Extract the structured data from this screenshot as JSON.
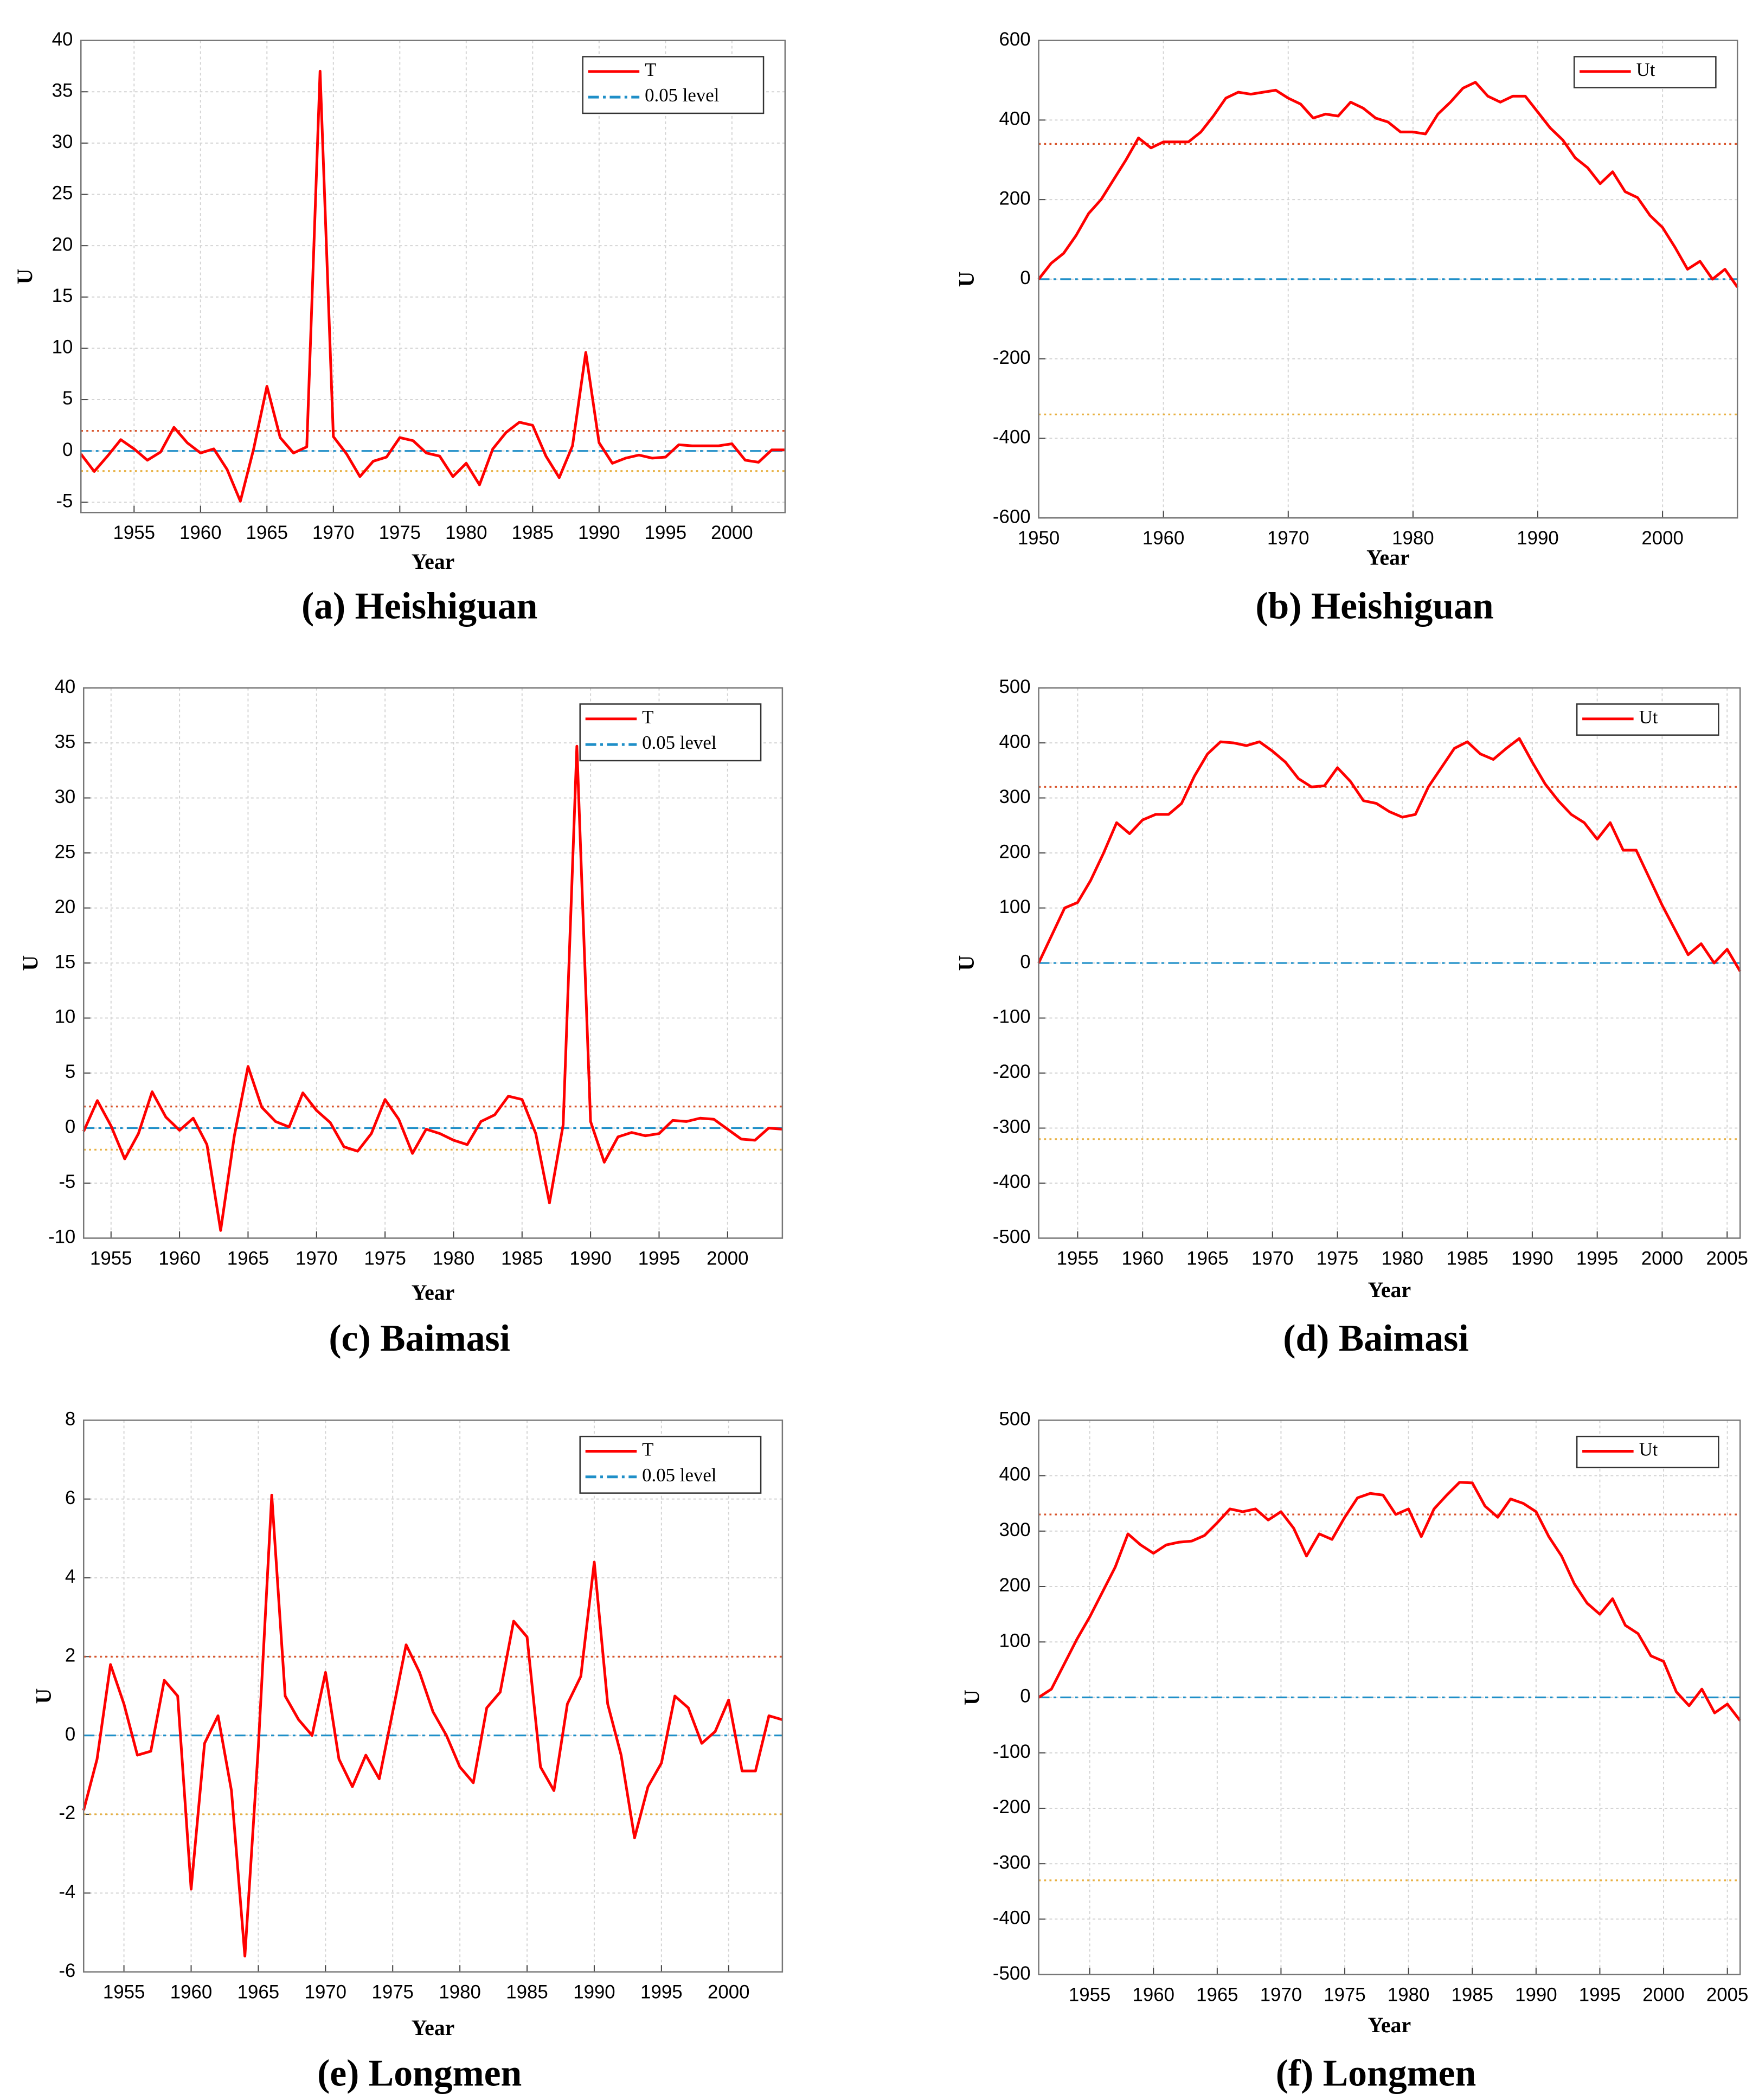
{
  "chart_data": [
    {
      "type": "line",
      "caption": "(a) Heishiguan",
      "xlabel": "Year",
      "ylabel": "U",
      "grid": true,
      "legend": "upper right",
      "xlim": [
        1951,
        2004
      ],
      "xticks": [
        1955,
        1960,
        1965,
        1970,
        1975,
        1980,
        1985,
        1990,
        1995,
        2000
      ],
      "ylim": [
        -6,
        40
      ],
      "yticks": [
        -5,
        0,
        5,
        10,
        15,
        20,
        25,
        30,
        35,
        40
      ],
      "x": [
        1951,
        1952,
        1953,
        1954,
        1955,
        1956,
        1957,
        1958,
        1959,
        1960,
        1961,
        1962,
        1963,
        1964,
        1965,
        1966,
        1967,
        1968,
        1969,
        1970,
        1971,
        1972,
        1973,
        1974,
        1975,
        1976,
        1977,
        1978,
        1979,
        1980,
        1981,
        1982,
        1983,
        1984,
        1985,
        1986,
        1987,
        1988,
        1989,
        1990,
        1991,
        1992,
        1993,
        1994,
        1995,
        1996,
        1997,
        1998,
        1999,
        2000,
        2001,
        2002,
        2003,
        2004
      ],
      "series": [
        {
          "name": "T",
          "color": "#ff0000",
          "values": [
            -0.3,
            -2.0,
            -0.5,
            1.1,
            0.2,
            -0.9,
            -0.1,
            2.3,
            0.8,
            -0.2,
            0.2,
            -1.8,
            -4.9,
            0.2,
            6.3,
            1.3,
            -0.2,
            0.4,
            37,
            1.4,
            -0.3,
            -2.5,
            -1.0,
            -0.6,
            1.3,
            1.0,
            -0.2,
            -0.5,
            -2.5,
            -1.2,
            -3.3,
            0.2,
            1.8,
            2.8,
            2.5,
            -0.5,
            -2.6,
            0.5,
            9.6,
            0.8,
            -1.2,
            -0.7,
            -0.4,
            -0.7,
            -0.6,
            0.6,
            0.5,
            0.5,
            0.5,
            0.7,
            -0.9,
            -1.1,
            0.1,
            0.1
          ]
        }
      ],
      "reference_lines": [
        {
          "name": "0.05 level",
          "value": 0,
          "color": "#1f8fc8",
          "style": "dashdot"
        },
        {
          "value": 1.96,
          "color": "#d9542b",
          "style": "dotted"
        },
        {
          "value": -1.96,
          "color": "#e8b040",
          "style": "dotted"
        }
      ]
    },
    {
      "type": "line",
      "caption": "(b) Heishiguan",
      "xlabel": "Year",
      "ylabel": "U",
      "grid": true,
      "legend": "upper right",
      "xlim": [
        1950,
        2006
      ],
      "xticks": [
        1950,
        1960,
        1970,
        1980,
        1990,
        2000
      ],
      "ylim": [
        -600,
        600
      ],
      "yticks": [
        -600,
        -400,
        -200,
        0,
        200,
        400,
        600
      ],
      "x": [
        1950,
        1951,
        1952,
        1953,
        1954,
        1955,
        1956,
        1957,
        1958,
        1959,
        1960,
        1961,
        1962,
        1963,
        1964,
        1965,
        1966,
        1967,
        1968,
        1969,
        1970,
        1971,
        1972,
        1973,
        1974,
        1975,
        1976,
        1977,
        1978,
        1979,
        1980,
        1981,
        1982,
        1983,
        1984,
        1985,
        1986,
        1987,
        1988,
        1989,
        1990,
        1991,
        1992,
        1993,
        1994,
        1995,
        1996,
        1997,
        1998,
        1999,
        2000,
        2001,
        2002,
        2003,
        2004,
        2005,
        2006
      ],
      "series": [
        {
          "name": "Ut",
          "color": "#ff0000",
          "values": [
            0,
            40,
            65,
            110,
            165,
            200,
            250,
            300,
            355,
            330,
            345,
            345,
            345,
            370,
            410,
            455,
            470,
            465,
            470,
            475,
            455,
            440,
            405,
            415,
            410,
            445,
            430,
            405,
            395,
            370,
            370,
            365,
            415,
            445,
            480,
            495,
            460,
            445,
            460,
            460,
            420,
            380,
            350,
            305,
            280,
            240,
            270,
            220,
            205,
            160,
            130,
            80,
            25,
            45,
            0,
            25,
            -20
          ]
        }
      ],
      "reference_lines": [
        {
          "value": 0,
          "color": "#1f8fc8",
          "style": "dashdot"
        },
        {
          "value": 340,
          "color": "#d9542b",
          "style": "dotted"
        },
        {
          "value": -340,
          "color": "#e8b040",
          "style": "dotted"
        }
      ]
    },
    {
      "type": "line",
      "caption": "(c) Baimasi",
      "xlabel": "Year",
      "ylabel": "U",
      "grid": true,
      "legend": "upper right",
      "xlim": [
        1953,
        2004
      ],
      "xticks": [
        1955,
        1960,
        1965,
        1970,
        1975,
        1980,
        1985,
        1990,
        1995,
        2000
      ],
      "ylim": [
        -10,
        40
      ],
      "yticks": [
        -10,
        -5,
        0,
        5,
        10,
        15,
        20,
        25,
        30,
        35,
        40
      ],
      "x": [
        1953,
        1954,
        1955,
        1956,
        1957,
        1958,
        1959,
        1960,
        1961,
        1962,
        1963,
        1964,
        1965,
        1966,
        1967,
        1968,
        1969,
        1970,
        1971,
        1972,
        1973,
        1974,
        1975,
        1976,
        1977,
        1978,
        1979,
        1980,
        1981,
        1982,
        1983,
        1984,
        1985,
        1986,
        1987,
        1988,
        1989,
        1990,
        1991,
        1992,
        1993,
        1994,
        1995,
        1996,
        1997,
        1998,
        1999,
        2000,
        2001,
        2002,
        2003,
        2004
      ],
      "series": [
        {
          "name": "T",
          "color": "#ff0000",
          "values": [
            -0.3,
            2.5,
            0.2,
            -2.8,
            -0.5,
            3.3,
            1.0,
            -0.2,
            0.9,
            -1.5,
            -9.3,
            -0.7,
            5.6,
            1.9,
            0.6,
            0.1,
            3.2,
            1.6,
            0.5,
            -1.7,
            -2.1,
            -0.5,
            2.6,
            0.8,
            -2.3,
            -0.1,
            -0.5,
            -1.1,
            -1.5,
            0.6,
            1.2,
            2.9,
            2.6,
            -0.5,
            -6.8,
            0.3,
            34.7,
            0.6,
            -3.1,
            -0.8,
            -0.4,
            -0.7,
            -0.5,
            0.7,
            0.6,
            0.9,
            0.8,
            -0.1,
            -1.0,
            -1.1,
            0.0,
            -0.1
          ]
        }
      ],
      "reference_lines": [
        {
          "name": "0.05 level",
          "value": 0,
          "color": "#1f8fc8",
          "style": "dashdot"
        },
        {
          "value": 1.96,
          "color": "#d9542b",
          "style": "dotted"
        },
        {
          "value": -1.96,
          "color": "#e8b040",
          "style": "dotted"
        }
      ]
    },
    {
      "type": "line",
      "caption": "(d) Baimasi",
      "xlabel": "Year",
      "ylabel": "U",
      "grid": true,
      "legend": "upper right",
      "xlim": [
        1952,
        2006
      ],
      "xticks": [
        1955,
        1960,
        1965,
        1970,
        1975,
        1980,
        1985,
        1990,
        1995,
        2000,
        2005
      ],
      "ylim": [
        -500,
        500
      ],
      "yticks": [
        -500,
        -400,
        -300,
        -200,
        -100,
        0,
        100,
        200,
        300,
        400,
        500
      ],
      "x": [
        1952,
        1953,
        1954,
        1955,
        1956,
        1957,
        1958,
        1959,
        1960,
        1961,
        1962,
        1963,
        1964,
        1965,
        1966,
        1967,
        1968,
        1969,
        1970,
        1971,
        1972,
        1973,
        1974,
        1975,
        1976,
        1977,
        1978,
        1979,
        1980,
        1981,
        1982,
        1983,
        1984,
        1985,
        1986,
        1987,
        1988,
        1989,
        1990,
        1991,
        1992,
        1993,
        1994,
        1995,
        1996,
        1997,
        1998,
        1999,
        2000,
        2001,
        2002,
        2003,
        2004,
        2005,
        2006
      ],
      "series": [
        {
          "name": "Ut",
          "color": "#ff0000",
          "values": [
            0,
            50,
            100,
            110,
            150,
            200,
            255,
            235,
            260,
            270,
            270,
            290,
            340,
            380,
            402,
            400,
            395,
            402,
            385,
            365,
            335,
            320,
            322,
            355,
            330,
            295,
            290,
            275,
            265,
            270,
            320,
            355,
            390,
            402,
            380,
            370,
            390,
            408,
            365,
            325,
            295,
            270,
            255,
            225,
            255,
            205,
            205,
            155,
            105,
            60,
            15,
            35,
            0,
            25,
            -15
          ]
        }
      ],
      "reference_lines": [
        {
          "value": 0,
          "color": "#1f8fc8",
          "style": "dashdot"
        },
        {
          "value": 320,
          "color": "#d9542b",
          "style": "dotted"
        },
        {
          "value": -320,
          "color": "#e8b040",
          "style": "dotted"
        }
      ]
    },
    {
      "type": "line",
      "caption": "(e) Longmen",
      "xlabel": "Year",
      "ylabel": "U",
      "grid": true,
      "legend": "upper right",
      "xlim": [
        1952,
        2004
      ],
      "xticks": [
        1955,
        1960,
        1965,
        1970,
        1975,
        1980,
        1985,
        1990,
        1995,
        2000
      ],
      "ylim": [
        -6,
        8
      ],
      "yticks": [
        -6,
        -4,
        -2,
        0,
        2,
        4,
        6,
        8
      ],
      "x": [
        1952,
        1953,
        1954,
        1955,
        1956,
        1957,
        1958,
        1959,
        1960,
        1961,
        1962,
        1963,
        1964,
        1965,
        1966,
        1967,
        1968,
        1969,
        1970,
        1971,
        1972,
        1973,
        1974,
        1975,
        1976,
        1977,
        1978,
        1979,
        1980,
        1981,
        1982,
        1983,
        1984,
        1985,
        1986,
        1987,
        1988,
        1989,
        1990,
        1991,
        1992,
        1993,
        1994,
        1995,
        1996,
        1997,
        1998,
        1999,
        2000,
        2001,
        2002,
        2003,
        2004
      ],
      "series": [
        {
          "name": "T",
          "color": "#ff0000",
          "values": [
            -1.9,
            -0.6,
            1.8,
            0.8,
            -0.5,
            -0.4,
            1.4,
            1.0,
            -3.9,
            -0.2,
            0.5,
            -1.4,
            -5.6,
            -0.3,
            6.1,
            1.0,
            0.4,
            0.0,
            1.6,
            -0.6,
            -1.3,
            -0.5,
            -1.1,
            0.6,
            2.3,
            1.6,
            0.6,
            0.0,
            -0.8,
            -1.2,
            0.7,
            1.1,
            2.9,
            2.5,
            -0.8,
            -1.4,
            0.8,
            1.5,
            4.4,
            0.8,
            -0.5,
            -2.6,
            -1.3,
            -0.7,
            1.0,
            0.7,
            -0.2,
            0.1,
            0.9,
            -0.9,
            -0.9,
            0.5,
            0.4
          ]
        }
      ],
      "reference_lines": [
        {
          "name": "0.05 level",
          "value": 0,
          "color": "#1f8fc8",
          "style": "dashdot"
        },
        {
          "value": 2,
          "color": "#d9542b",
          "style": "dotted"
        },
        {
          "value": -2,
          "color": "#e8b040",
          "style": "dotted"
        }
      ]
    },
    {
      "type": "line",
      "caption": "(f) Longmen",
      "xlabel": "Year",
      "ylabel": "U",
      "grid": true,
      "legend": "upper right",
      "xlim": [
        1951,
        2006
      ],
      "xticks": [
        1955,
        1960,
        1965,
        1970,
        1975,
        1980,
        1985,
        1990,
        1995,
        2000,
        2005
      ],
      "ylim": [
        -500,
        500
      ],
      "yticks": [
        -500,
        -400,
        -300,
        -200,
        -100,
        0,
        100,
        200,
        300,
        400,
        500
      ],
      "x": [
        1951,
        1952,
        1953,
        1954,
        1955,
        1956,
        1957,
        1958,
        1959,
        1960,
        1961,
        1962,
        1963,
        1964,
        1965,
        1966,
        1967,
        1968,
        1969,
        1970,
        1971,
        1972,
        1973,
        1974,
        1975,
        1976,
        1977,
        1978,
        1979,
        1980,
        1981,
        1982,
        1983,
        1984,
        1985,
        1986,
        1987,
        1988,
        1989,
        1990,
        1991,
        1992,
        1993,
        1994,
        1995,
        1996,
        1997,
        1998,
        1999,
        2000,
        2001,
        2002,
        2003,
        2004,
        2005,
        2006
      ],
      "series": [
        {
          "name": "Ut",
          "color": "#ff0000",
          "values": [
            0,
            15,
            60,
            105,
            145,
            190,
            235,
            295,
            275,
            260,
            275,
            280,
            282,
            292,
            315,
            340,
            335,
            340,
            320,
            335,
            305,
            255,
            295,
            285,
            325,
            360,
            368,
            365,
            330,
            340,
            290,
            340,
            365,
            388,
            387,
            345,
            325,
            358,
            350,
            335,
            290,
            255,
            205,
            170,
            150,
            178,
            130,
            115,
            75,
            65,
            10,
            -15,
            15,
            -28,
            -12,
            -42
          ]
        }
      ],
      "reference_lines": [
        {
          "value": 0,
          "color": "#1f8fc8",
          "style": "dashdot"
        },
        {
          "value": 330,
          "color": "#d9542b",
          "style": "dotted"
        },
        {
          "value": -330,
          "color": "#e8b040",
          "style": "dotted"
        }
      ]
    }
  ]
}
